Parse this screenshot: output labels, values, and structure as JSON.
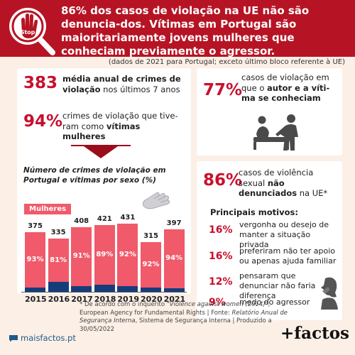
{
  "header": {
    "title": "86% dos casos de violação na UE não são denuncia-dos. Vítimas em Portugal são maioritariamente jovens mulheres que conheciam previamente o agressor.",
    "logo_text": "Stop"
  },
  "subtitle": "(dados de 2021 para Portugal; exceto último bloco referente à UE)",
  "stats": {
    "s1_value": "383",
    "s1_bold": "média anual de crimes de violação",
    "s1_rest": " nos últimos 7 anos",
    "s2_value": "94%",
    "s2_plain": "crimes de violação que tive-ram como ",
    "s2_bold": "vítimas mulheres",
    "s3_value": "77%",
    "s3_plain": "casos de violação em que o ",
    "s3_bold": "autor e a víti-ma se conheciam",
    "s4_value": "86%",
    "s4_plain": "casos de violência sexual ",
    "s4_bold": "não denunciados",
    "s4_rest": " na UE*"
  },
  "chart_data": {
    "type": "bar",
    "title": "Número de crimes de violação em Portugal e vítimas por sexo (%)",
    "legend": "Mulheres",
    "categories": [
      "2015",
      "2016",
      "2017",
      "2018",
      "2019",
      "2020",
      "2021"
    ],
    "totals": [
      375,
      335,
      408,
      421,
      431,
      315,
      397
    ],
    "women_pct": [
      93,
      81,
      91,
      89,
      92,
      92,
      94
    ],
    "colors": {
      "women": "#f05a6a",
      "other": "#163d7a"
    }
  },
  "motives": {
    "title": "Principais motivos:",
    "items": [
      {
        "pct": "16%",
        "text": "vergonha ou desejo de manter a situação privada"
      },
      {
        "pct": "16%",
        "text": "preferiram não ter apoio ou apenas ajuda familiar"
      },
      {
        "pct": "12%",
        "text": "pensaram que denunciar não faria diferença"
      },
      {
        "pct": "9%",
        "text": "medo do agressor"
      }
    ]
  },
  "footer": {
    "n1": "* De acordo com o inquérito ",
    "n2": "\"Violence against women (2014)\"",
    "n3": ", European Agency for Fundamental Rights | Fonte: ",
    "n4": "Relatório Anual de Segurança Interna",
    "n5": ", Sistema de Segurança Interna | Produzido a 30/05/2022",
    "site": "maisfactos.pt",
    "brand": "+factos"
  },
  "colors": {
    "accent": "#b61424",
    "red_text": "#c8102e",
    "background": "#fbefe6"
  }
}
